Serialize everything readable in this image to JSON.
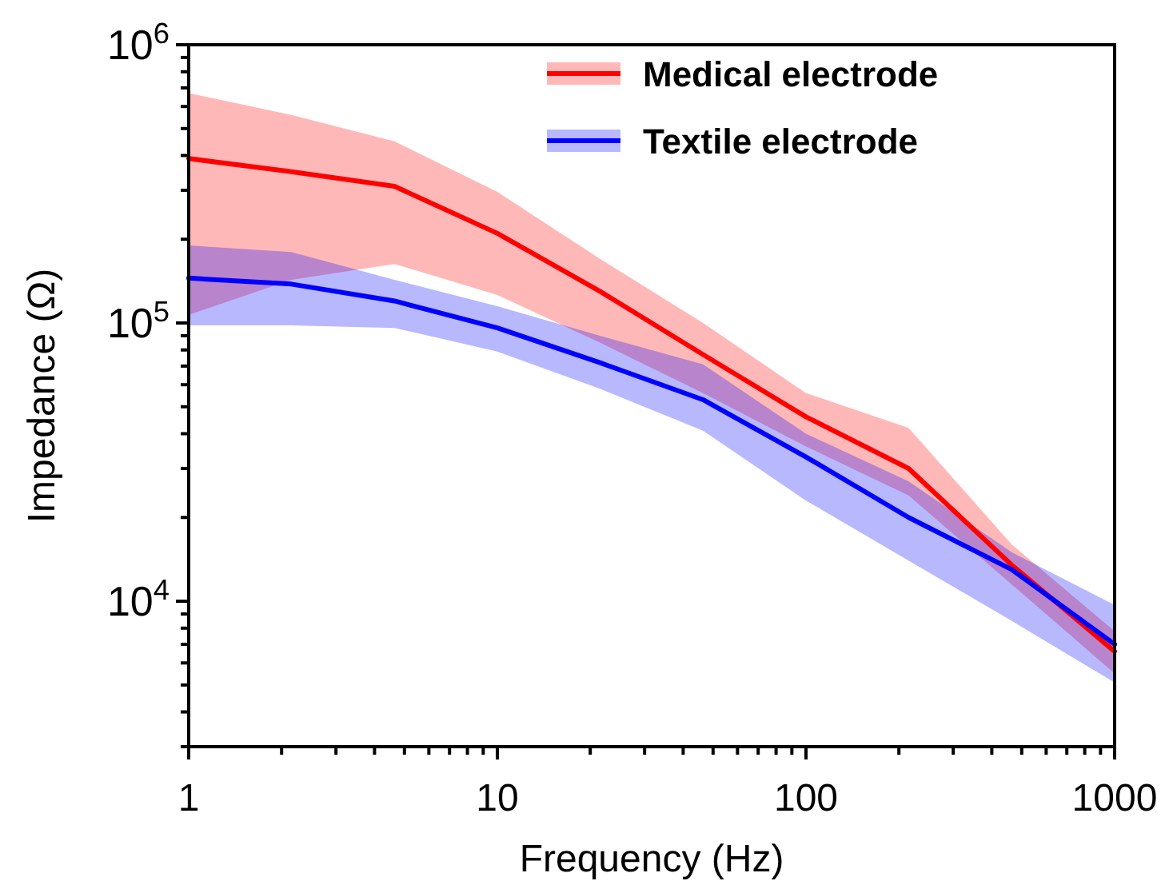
{
  "chart_data": {
    "type": "line",
    "xlabel": "Frequency (Hz)",
    "ylabel": "Impedance (Ω)",
    "log": "xy",
    "legend": "top right",
    "grid": false,
    "line_style": "solid",
    "marker": "none",
    "x": [
      1,
      2.15,
      4.64,
      10,
      21.5,
      46.4,
      100,
      215,
      464,
      1000
    ],
    "xlim": [
      1,
      1000
    ],
    "ylim": [
      3000,
      1000000
    ],
    "xticks": [
      1,
      {
        "value": 2,
        "label": null
      },
      {
        "value": 3,
        "label": null
      },
      {
        "value": 4,
        "label": null
      },
      {
        "value": 5,
        "label": null
      },
      {
        "value": 6,
        "label": null
      },
      {
        "value": 7,
        "label": null
      },
      {
        "value": 8,
        "label": null
      },
      {
        "value": 9,
        "label": null
      },
      10,
      {
        "value": 20,
        "label": null
      },
      {
        "value": 30,
        "label": null
      },
      {
        "value": 40,
        "label": null
      },
      {
        "value": 50,
        "label": null
      },
      {
        "value": 60,
        "label": null
      },
      {
        "value": 70,
        "label": null
      },
      {
        "value": 80,
        "label": null
      },
      {
        "value": 90,
        "label": null
      },
      100,
      {
        "value": 200,
        "label": null
      },
      {
        "value": 300,
        "label": null
      },
      {
        "value": 400,
        "label": null
      },
      {
        "value": 500,
        "label": null
      },
      {
        "value": 600,
        "label": null
      },
      {
        "value": 700,
        "label": null
      },
      {
        "value": 800,
        "label": null
      },
      {
        "value": 900,
        "label": null
      },
      1000
    ],
    "yticks": [
      {
        "value": 3000,
        "label": null
      },
      {
        "value": 4000,
        "label": null
      },
      {
        "value": 5000,
        "label": null
      },
      {
        "value": 6000,
        "label": null
      },
      {
        "value": 7000,
        "label": null
      },
      {
        "value": 8000,
        "label": null
      },
      {
        "value": 9000,
        "label": null
      },
      {
        "value": 10000,
        "label": "10$^{4}$"
      },
      {
        "value": 20000,
        "label": null
      },
      {
        "value": 30000,
        "label": null
      },
      {
        "value": 40000,
        "label": null
      },
      {
        "value": 50000,
        "label": null
      },
      {
        "value": 60000,
        "label": null
      },
      {
        "value": 70000,
        "label": null
      },
      {
        "value": 80000,
        "label": null
      },
      {
        "value": 90000,
        "label": null
      },
      {
        "value": 100000,
        "label": "10$^{5}$"
      },
      {
        "value": 200000,
        "label": null
      },
      {
        "value": 300000,
        "label": null
      },
      {
        "value": 400000,
        "label": null
      },
      {
        "value": 500000,
        "label": null
      },
      {
        "value": 600000,
        "label": null
      },
      {
        "value": 700000,
        "label": null
      },
      {
        "value": 800000,
        "label": null
      },
      {
        "value": 900000,
        "label": null
      },
      {
        "value": 1000000,
        "label": "10$^{6}$"
      }
    ],
    "series": [
      {
        "name": "Medical electrode",
        "color": "#ff0000",
        "values": [
          390000,
          350000,
          310000,
          210000,
          130000,
          77000,
          46000,
          30000,
          13500,
          6600
        ],
        "lower": [
          107000,
          143000,
          163000,
          126000,
          85000,
          56000,
          36000,
          24000,
          11500,
          5500
        ],
        "upper": [
          670000,
          560000,
          450000,
          296000,
          170000,
          100000,
          56000,
          42000,
          16000,
          7800
        ]
      },
      {
        "name": "Textile electrode",
        "color": "#0000ff",
        "values": [
          145000,
          138000,
          120000,
          96000,
          72000,
          53000,
          33000,
          20000,
          13000,
          7000
        ],
        "lower": [
          98000,
          98000,
          96000,
          79000,
          58000,
          41000,
          23000,
          14000,
          8500,
          5100
        ],
        "upper": [
          190000,
          180000,
          143000,
          115000,
          90000,
          71000,
          40000,
          27000,
          15000,
          9700
        ]
      }
    ]
  }
}
